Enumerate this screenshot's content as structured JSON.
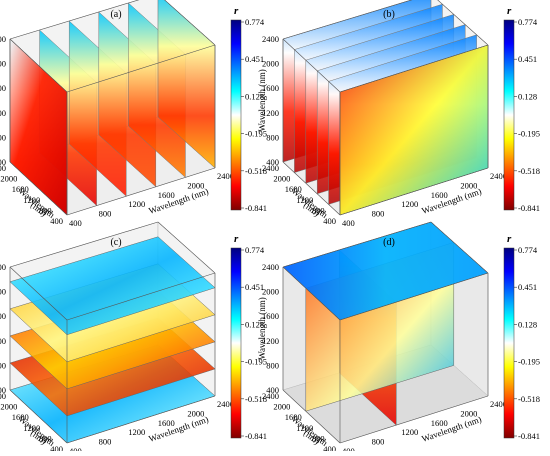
{
  "figure": {
    "panels": [
      {
        "label": "(a)",
        "style": "x-slices"
      },
      {
        "label": "(b)",
        "style": "y-slices"
      },
      {
        "label": "(c)",
        "style": "z-slices"
      },
      {
        "label": "(d)",
        "style": "orthoslice"
      }
    ],
    "axes": {
      "vertical_label": "Wavelength (nm)",
      "left_depth_label": "Wavelength",
      "left_depth_unit": "(nm)",
      "right_depth_label": "Wavelength (nm)",
      "vertical_ticks": [
        "400",
        "800",
        "1200",
        "1600",
        "2000",
        "2400"
      ],
      "left_depth_ticks": [
        "400",
        "800",
        "1200",
        "1600",
        "2000",
        "2400"
      ],
      "right_depth_ticks": [
        "400",
        "800",
        "1200",
        "1600",
        "2000",
        "2400"
      ]
    },
    "colorbar": {
      "title": "r",
      "ticks": [
        "0.774",
        "0.451",
        "0.128",
        "-0.195",
        "-0.518",
        "-0.841"
      ],
      "colors": [
        "#800000",
        "#ff0000",
        "#ff8000",
        "#ffff00",
        "#ffffff",
        "#00ffff",
        "#0080ff",
        "#0000ff",
        "#00007f"
      ]
    }
  },
  "chart_data": [
    {
      "type": "heatmap",
      "panel": "(a)",
      "title": "",
      "xlabel": "Wavelength (nm)",
      "ylabel": "Wavelength (nm)",
      "zlabel": "Wavelength (nm)",
      "axis_range_nm": [
        400,
        2400
      ],
      "color_range": [
        -0.841,
        0.774
      ],
      "color_label": "r"
    },
    {
      "type": "heatmap",
      "panel": "(b)",
      "title": "",
      "xlabel": "Wavelength (nm)",
      "ylabel": "Wavelength (nm)",
      "zlabel": "Wavelength (nm)",
      "axis_range_nm": [
        400,
        2400
      ],
      "color_range": [
        -0.841,
        0.774
      ],
      "color_label": "r"
    },
    {
      "type": "heatmap",
      "panel": "(c)",
      "title": "",
      "xlabel": "Wavelength (nm)",
      "ylabel": "Wavelength (nm)",
      "zlabel": "Wavelength (nm)",
      "axis_range_nm": [
        400,
        2400
      ],
      "color_range": [
        -0.841,
        0.774
      ],
      "color_label": "r"
    },
    {
      "type": "heatmap",
      "panel": "(d)",
      "title": "",
      "xlabel": "Wavelength (nm)",
      "ylabel": "Wavelength (nm)",
      "zlabel": "Wavelength (nm)",
      "axis_range_nm": [
        400,
        2400
      ],
      "color_range": [
        -0.841,
        0.774
      ],
      "color_label": "r"
    }
  ]
}
